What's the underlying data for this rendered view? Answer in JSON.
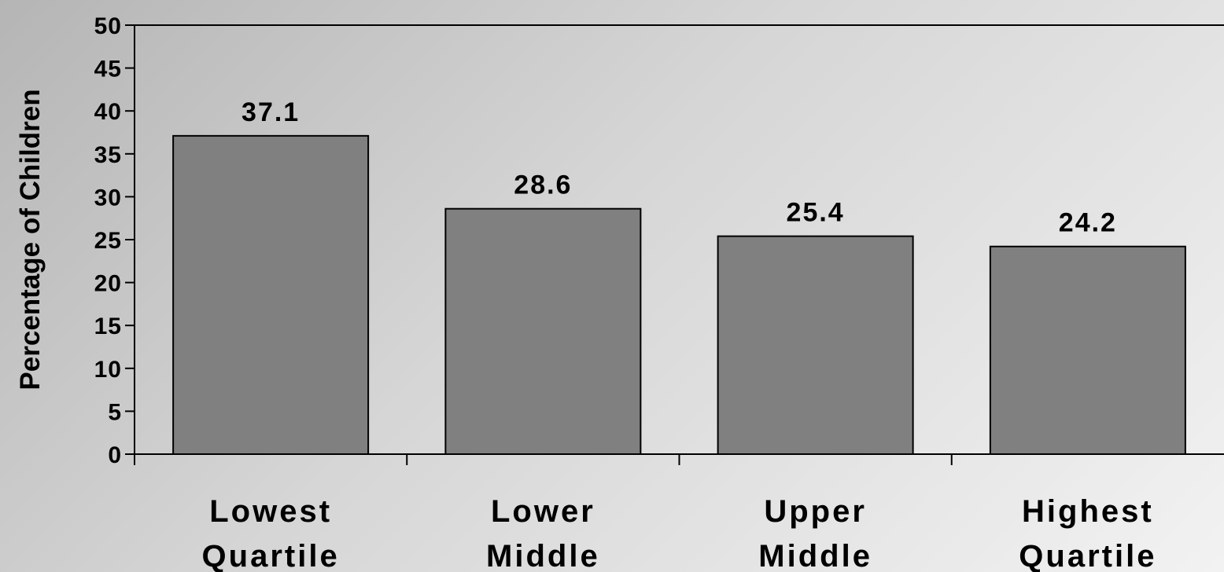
{
  "chart_data": {
    "type": "bar",
    "categories": [
      [
        "Lowest",
        "Quartile"
      ],
      [
        "Lower",
        "Middle"
      ],
      [
        "Upper",
        "Middle"
      ],
      [
        "Highest",
        "Quartile"
      ]
    ],
    "values": [
      37.1,
      28.6,
      25.4,
      24.2
    ],
    "value_labels": [
      "37.1",
      "28.6",
      "25.4",
      "24.2"
    ],
    "title": "",
    "xlabel": "",
    "ylabel": "Percentage of Children",
    "ylim": [
      0,
      50
    ],
    "yticks": [
      0,
      5,
      10,
      15,
      20,
      25,
      30,
      35,
      40,
      45,
      50
    ],
    "grid": false,
    "legend": "none",
    "bar_color": "#808080",
    "bar_stroke": "#000000"
  }
}
